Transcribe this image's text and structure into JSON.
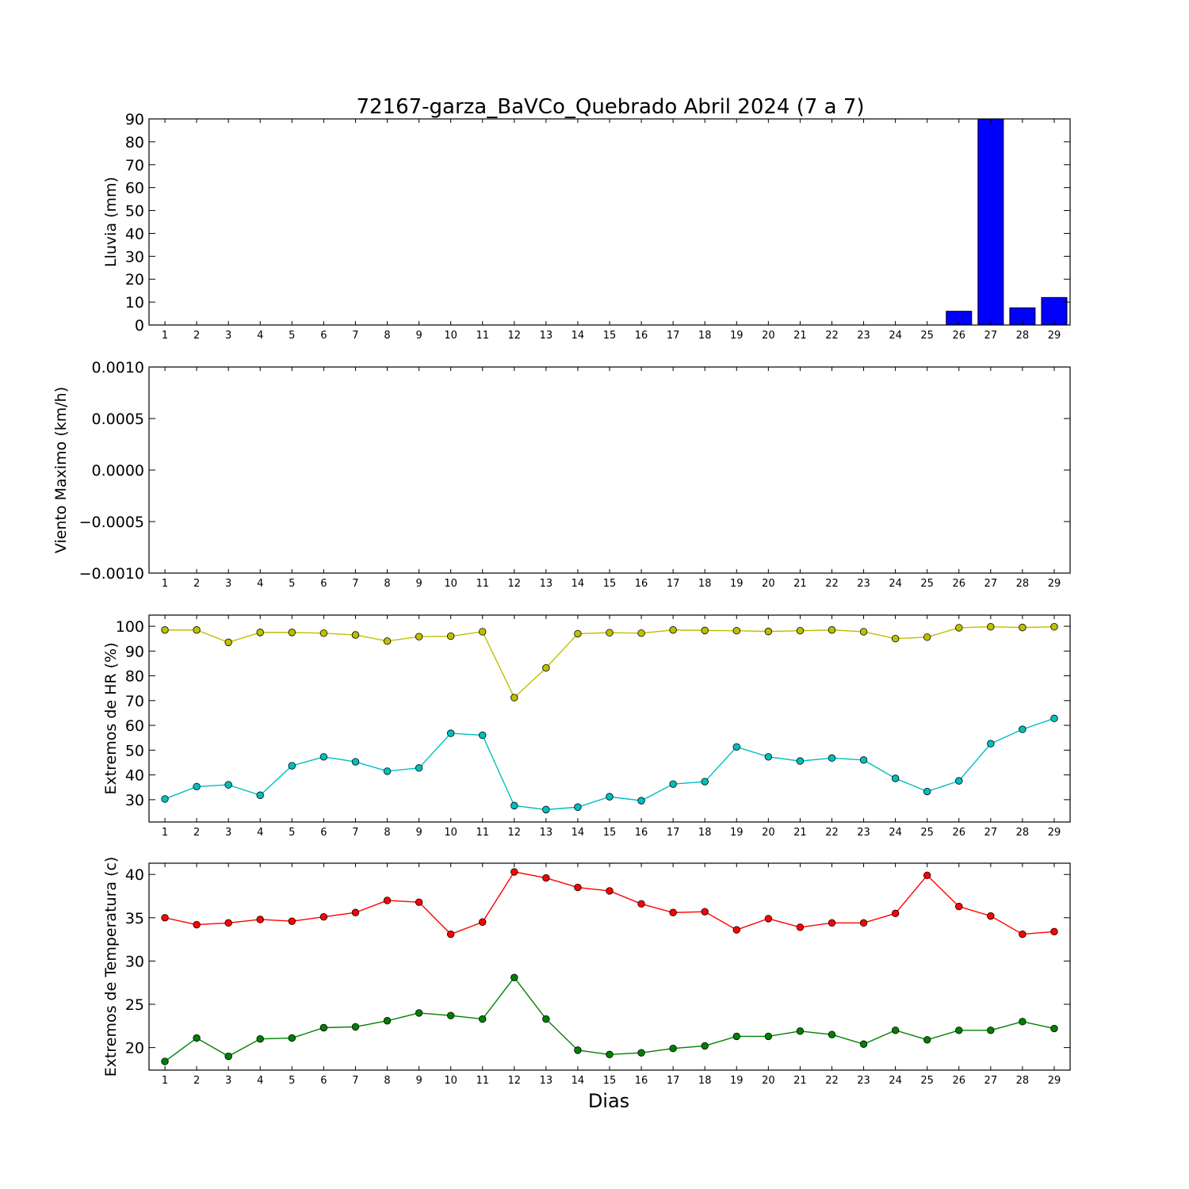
{
  "title": "72167-garza_BaVCo_Quebrado Abril 2024  (7 a 7)",
  "xlabel": "Dias",
  "days": [
    1,
    2,
    3,
    4,
    5,
    6,
    7,
    8,
    9,
    10,
    11,
    12,
    13,
    14,
    15,
    16,
    17,
    18,
    19,
    20,
    21,
    22,
    23,
    24,
    25,
    26,
    27,
    28,
    29
  ],
  "chart_data": [
    {
      "type": "bar",
      "ylabel": "Lluvia (mm)",
      "ylim": [
        0,
        90
      ],
      "yticks": [
        0,
        10,
        20,
        30,
        40,
        50,
        60,
        70,
        80,
        90
      ],
      "x": [
        1,
        2,
        3,
        4,
        5,
        6,
        7,
        8,
        9,
        10,
        11,
        12,
        13,
        14,
        15,
        16,
        17,
        18,
        19,
        20,
        21,
        22,
        23,
        24,
        25,
        26,
        27,
        28,
        29
      ],
      "series": [
        {
          "color": "#0000ff",
          "values": [
            0,
            0,
            0,
            0,
            0,
            0,
            0,
            0,
            0,
            0,
            0,
            0,
            0,
            0,
            0,
            0,
            0,
            0,
            0,
            0,
            0,
            0,
            0,
            0,
            0,
            6,
            90,
            7.5,
            12
          ]
        }
      ],
      "grid": false
    },
    {
      "type": "line",
      "ylabel": "Viento Maximo (km/h)",
      "ylim": [
        -0.001,
        0.001
      ],
      "yticks": [
        "−0.0010",
        "−0.0005",
        "0.0000",
        "0.0005",
        "0.0010"
      ],
      "ytick_values": [
        -0.001,
        -0.0005,
        0,
        0.0005,
        0.001
      ],
      "x": [
        1,
        2,
        3,
        4,
        5,
        6,
        7,
        8,
        9,
        10,
        11,
        12,
        13,
        14,
        15,
        16,
        17,
        18,
        19,
        20,
        21,
        22,
        23,
        24,
        25,
        26,
        27,
        28,
        29
      ],
      "series": [],
      "grid": false
    },
    {
      "type": "line",
      "ylabel": "Extremos de HR (%)",
      "ylim": [
        21,
        104.5
      ],
      "yticks": [
        30,
        40,
        50,
        60,
        70,
        80,
        90,
        100
      ],
      "x": [
        1,
        2,
        3,
        4,
        5,
        6,
        7,
        8,
        9,
        10,
        11,
        12,
        13,
        14,
        15,
        16,
        17,
        18,
        19,
        20,
        21,
        22,
        23,
        24,
        25,
        26,
        27,
        28,
        29
      ],
      "series": [
        {
          "color": "#bfbf00",
          "values": [
            98.5,
            98.5,
            93.5,
            97.5,
            97.5,
            97.2,
            96.5,
            94,
            95.8,
            96,
            97.8,
            71.2,
            83.2,
            97,
            97.4,
            97.2,
            98.5,
            98.3,
            98.2,
            97.9,
            98.2,
            98.5,
            97.8,
            95,
            95.6,
            99.4,
            99.8,
            99.5,
            99.8
          ]
        },
        {
          "color": "#00bfbf",
          "values": [
            30.3,
            35.3,
            36,
            31.8,
            43.7,
            47.3,
            45.3,
            41.5,
            42.8,
            56.8,
            56,
            27.6,
            26,
            27,
            31.2,
            29.6,
            36.3,
            37.3,
            51.3,
            47.3,
            45.6,
            46.8,
            46,
            38.6,
            33.3,
            37.6,
            52.6,
            58.4,
            62.8
          ]
        }
      ],
      "grid": false
    },
    {
      "type": "line",
      "ylabel": "Extremos de Temperatura (c)",
      "ylim": [
        17.4,
        41.3
      ],
      "yticks": [
        20,
        25,
        30,
        35,
        40
      ],
      "x": [
        1,
        2,
        3,
        4,
        5,
        6,
        7,
        8,
        9,
        10,
        11,
        12,
        13,
        14,
        15,
        16,
        17,
        18,
        19,
        20,
        21,
        22,
        23,
        24,
        25,
        26,
        27,
        28,
        29
      ],
      "series": [
        {
          "color": "#ff0000",
          "values": [
            35,
            34.2,
            34.4,
            34.8,
            34.6,
            35.1,
            35.6,
            37,
            36.8,
            33.1,
            34.5,
            40.3,
            39.6,
            38.5,
            38.1,
            36.6,
            35.6,
            35.7,
            33.6,
            34.9,
            33.9,
            34.4,
            34.4,
            35.5,
            39.9,
            36.3,
            35.2,
            33.1,
            33.4
          ]
        },
        {
          "color": "#008000",
          "values": [
            18.4,
            21.1,
            19,
            21,
            21.1,
            22.3,
            22.4,
            23.1,
            24,
            23.7,
            23.3,
            28.1,
            23.3,
            19.7,
            19.2,
            19.4,
            19.9,
            20.2,
            21.3,
            21.3,
            21.9,
            21.5,
            20.4,
            22,
            20.9,
            22,
            22,
            23,
            22.2
          ]
        }
      ],
      "grid": false
    }
  ]
}
